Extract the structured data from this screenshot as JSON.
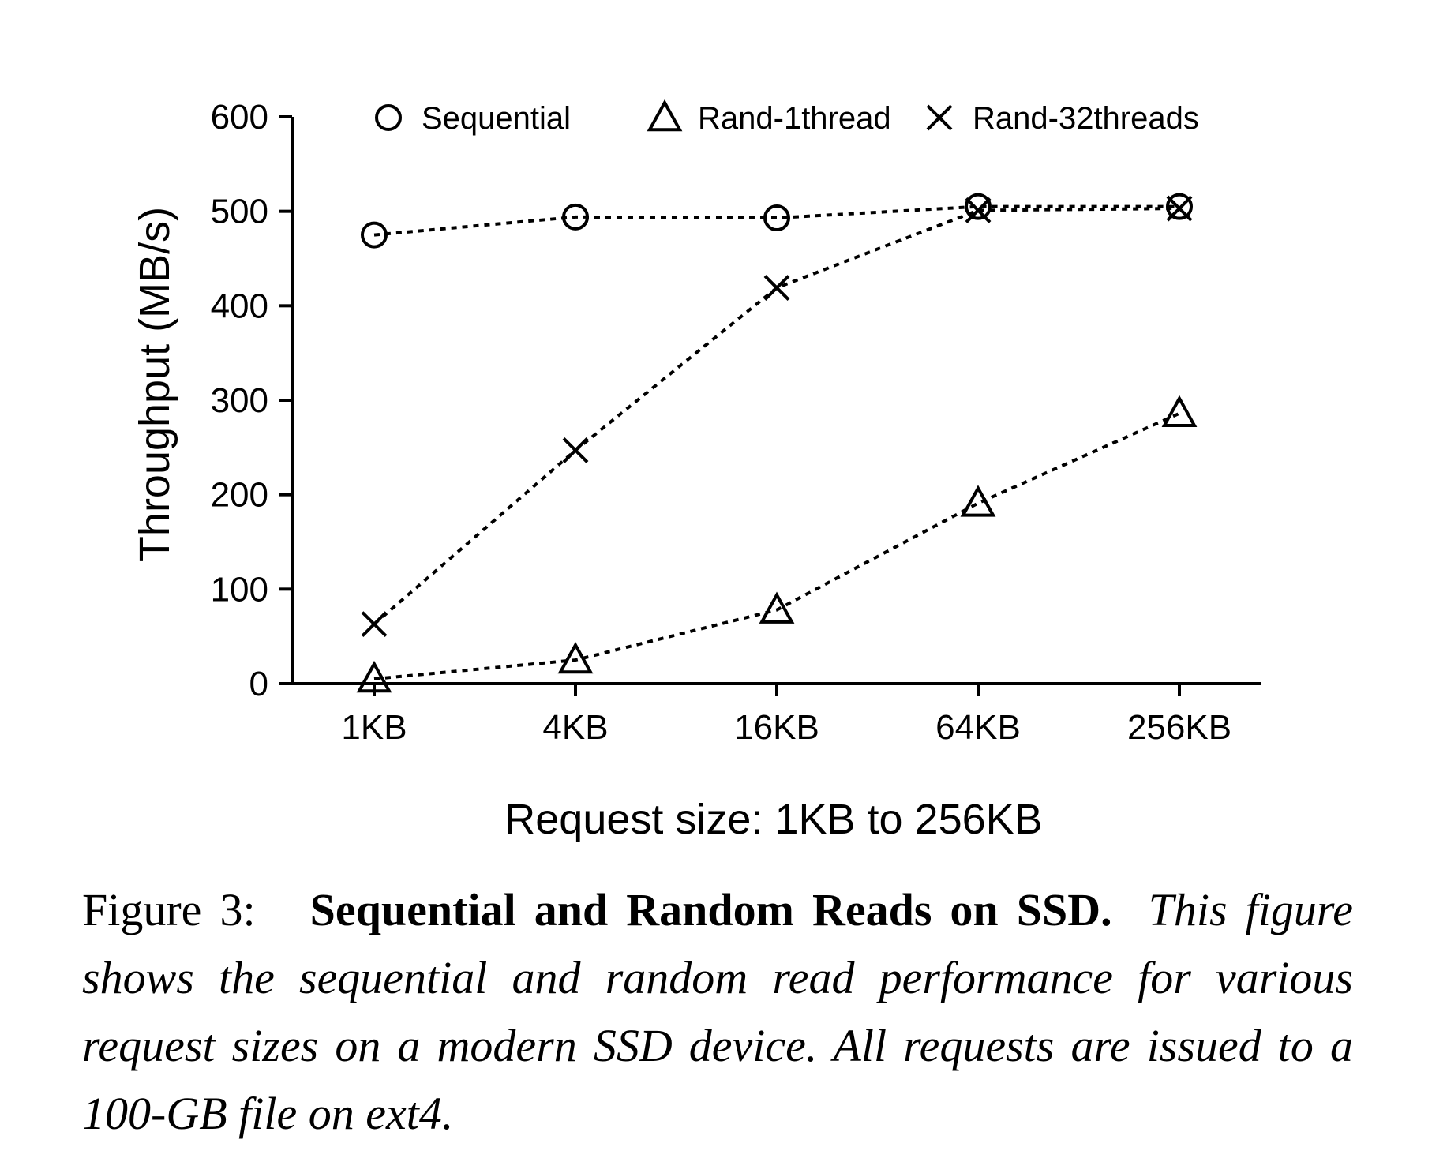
{
  "chart_data": {
    "type": "line",
    "categories": [
      "1KB",
      "4KB",
      "16KB",
      "64KB",
      "256KB"
    ],
    "xlabel": "Request size: 1KB to 256KB",
    "ylabel": "Throughput (MB/s)",
    "ylim": [
      0,
      600
    ],
    "yticks": [
      "0",
      "100",
      "200",
      "300",
      "400",
      "500",
      "600"
    ],
    "grid": false,
    "legend_position": "top",
    "series": [
      {
        "name": "Sequential",
        "marker": "circle",
        "values": [
          475,
          494,
          493,
          505,
          505
        ]
      },
      {
        "name": "Rand-1thread",
        "marker": "triangle",
        "values": [
          5,
          25,
          78,
          191,
          286
        ]
      },
      {
        "name": "Rand-32threads",
        "marker": "cross",
        "values": [
          63,
          247,
          419,
          501,
          503
        ]
      }
    ],
    "line_style": "dotted",
    "color": "#000000"
  },
  "caption": {
    "label": "Figure 3:",
    "title": "Sequential and Random Reads on SSD.",
    "body": "This figure shows the sequential and random read performance for various request sizes on a modern SSD device. All requests are issued to a 100-GB file on ext4."
  }
}
